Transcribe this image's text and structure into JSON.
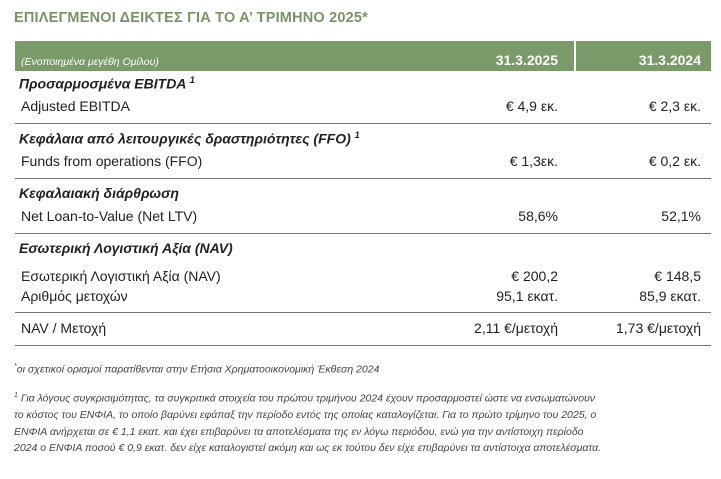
{
  "title": "ΕΠΙΛΕΓΜΕΝΟΙ ΔΕΙΚΤΕΣ ΓΙΑ ΤΟ Α’ ΤΡΙΜΗΝΟ 2025*",
  "header": {
    "subtitle": "(Ενοποιημένα μεγέθη Ομίλου)",
    "col1": "31.3.2025",
    "col2": "31.3.2024"
  },
  "sections": {
    "ebitda": {
      "title": "Προσαρμοσμένα EBITDA",
      "note": "1",
      "row": {
        "label": "Adjusted EBITDA",
        "v1": "€ 4,9 εκ.",
        "v2": "€ 2,3 εκ."
      }
    },
    "ffo": {
      "title": "Κεφάλαια από λειτουργικές δραστηριότητες (FFO)",
      "note": "1",
      "row": {
        "label": "Funds from operations (FFO)",
        "v1": "€ 1,3εκ.",
        "v2": "€ 0,2 εκ."
      }
    },
    "capital": {
      "title": "Κεφαλαιακή διάρθρωση",
      "row": {
        "label": "Net Loan-to-Value (Net LTV)",
        "v1": "58,6%",
        "v2": "52,1%"
      }
    },
    "nav": {
      "title": "Εσωτερική Λογιστική Αξία (NAV)",
      "row1": {
        "label": "Εσωτερική Λογιστική Αξία (NAV)",
        "v1": "€ 200,2",
        "v2": "€ 148,5"
      },
      "row2": {
        "label": "Αριθμός μετοχών",
        "v1": "95,1 εκατ.",
        "v2": "85,9 εκατ."
      }
    },
    "navps": {
      "row": {
        "label": "NAV / Μετοχή",
        "v1": "2,11 €/μετοχή",
        "v2": "1,73 €/μετοχή"
      }
    }
  },
  "footnotes": {
    "star_mark": "*",
    "star": "οι σχετικοί ορισμοί παρατίθενται στην Ετήσια Χρηματοοικονομική Έκθεση 2024",
    "one_mark": "1",
    "one_line1": "Για λόγους συγκρισιμότητας, τα συγκριτικά στοιχεία του πρώτου τριμήνου 2024 έχουν προσαρμοστεί ώστε να ενσωματώνουν",
    "one_line2": "το κόστος του ΕΝΦΙΑ, το οποίο βαρύνει εφάπαξ την περίοδο εντός της οποίας καταλογίζεται. Για το πρώτο τρίμηνο του 2025, ο",
    "one_line3": "ΕΝΦΙΑ ανήρχεται σε € 1,1 εκατ. και έχει επιβαρύνει τα αποτελέσματα της εν λόγω περιόδου, ενώ για την αντίστοιχη περίοδο",
    "one_line4": "2024 ο ΕΝΦΙΑ ποσού € 0,9 εκατ. δεν είχε καταλογιστεί ακόμη και ως εκ τούτου δεν είχε επιβαρύνει τα αντίστοιχα αποτελέσματα."
  }
}
